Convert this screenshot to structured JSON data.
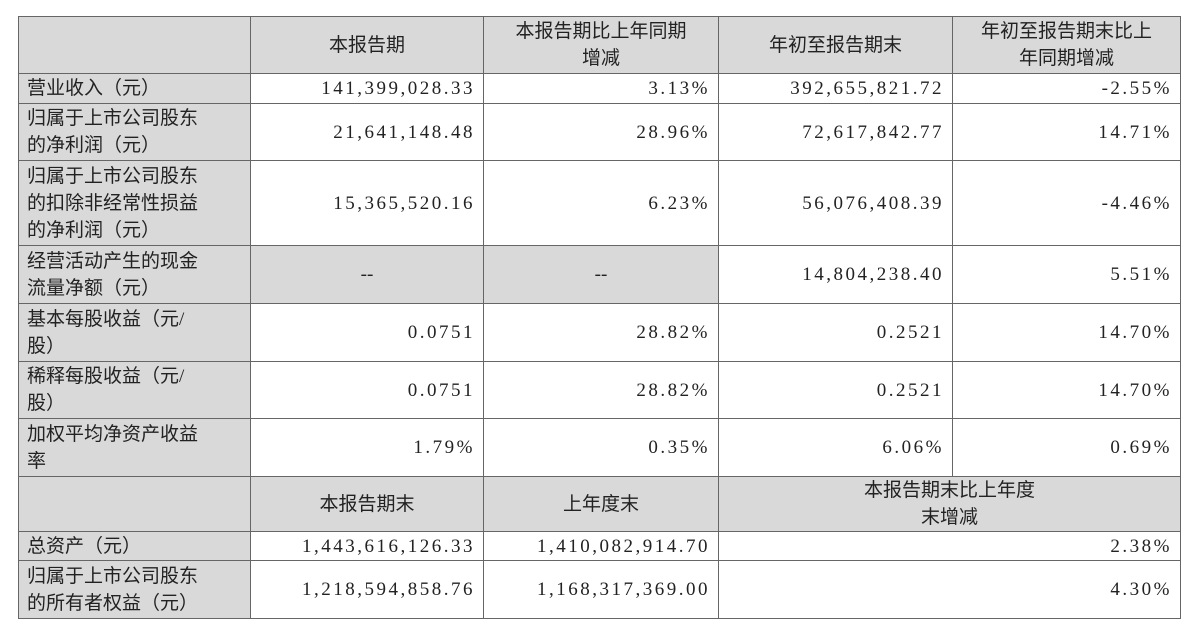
{
  "table": {
    "header": [
      "本报告期",
      "本报告期比上年同期增减",
      "年初至报告期末",
      "年初至报告期末比上年同期增减"
    ],
    "rows": [
      {
        "label": "营业收入（元）",
        "cells": [
          "141,399,028.33",
          "3.13%",
          "392,655,821.72",
          "-2.55%"
        ]
      },
      {
        "label": "归属于上市公司股东的净利润（元）",
        "cells": [
          "21,641,148.48",
          "28.96%",
          "72,617,842.77",
          "14.71%"
        ]
      },
      {
        "label": "归属于上市公司股东的扣除非经常性损益的净利润（元）",
        "cells": [
          "15,365,520.16",
          "6.23%",
          "56,076,408.39",
          "-4.46%"
        ]
      },
      {
        "label": "经营活动产生的现金流量净额（元）",
        "cells": [
          "--",
          "--",
          "14,804,238.40",
          "5.51%"
        ]
      },
      {
        "label": "基本每股收益（元/股）",
        "cells": [
          "0.0751",
          "28.82%",
          "0.2521",
          "14.70%"
        ]
      },
      {
        "label": "稀释每股收益（元/股）",
        "cells": [
          "0.0751",
          "28.82%",
          "0.2521",
          "14.70%"
        ]
      },
      {
        "label": "加权平均净资产收益率",
        "cells": [
          "1.79%",
          "0.35%",
          "6.06%",
          "0.69%"
        ]
      }
    ],
    "header2": [
      "本报告期末",
      "上年度末",
      "本报告期末比上年度末增减"
    ],
    "rows2": [
      {
        "label": "总资产（元）",
        "cells": [
          "1,443,616,126.33",
          "1,410,082,914.70",
          "2.38%"
        ]
      },
      {
        "label": "归属于上市公司股东的所有者权益（元）",
        "cells": [
          "1,218,594,858.76",
          "1,168,317,369.00",
          "4.30%"
        ]
      }
    ]
  }
}
